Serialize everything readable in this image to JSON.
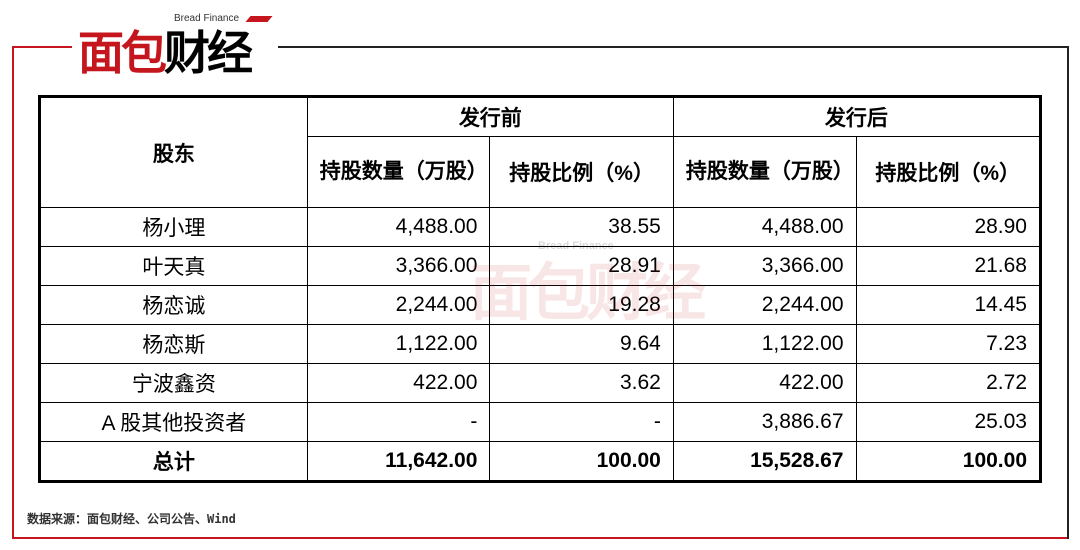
{
  "logo": {
    "en": "Bread Finance",
    "cn_red": "面包",
    "cn_black": "财经"
  },
  "table": {
    "group_headers": [
      "股东",
      "发行前",
      "发行后"
    ],
    "sub_headers": [
      "持股数量（万股）",
      "持股比例（%）",
      "持股数量（万股）",
      "持股比例（%）"
    ],
    "rows": [
      [
        "杨小理",
        "4,488.00",
        "38.55",
        "4,488.00",
        "28.90"
      ],
      [
        "叶天真",
        "3,366.00",
        "28.91",
        "3,366.00",
        "21.68"
      ],
      [
        "杨恋诚",
        "2,244.00",
        "19.28",
        "2,244.00",
        "14.45"
      ],
      [
        "杨恋斯",
        "1,122.00",
        "9.64",
        "1,122.00",
        "7.23"
      ],
      [
        "宁波鑫资",
        "422.00",
        "3.62",
        "422.00",
        "2.72"
      ],
      [
        "A 股其他投资者",
        "-",
        "-",
        "3,886.67",
        "25.03"
      ]
    ],
    "total": [
      "总计",
      "11,642.00",
      "100.00",
      "15,528.67",
      "100.00"
    ]
  },
  "source": "数据来源：面包财经、公司公告、Wind",
  "colors": {
    "brand_red": "#c4161c"
  }
}
